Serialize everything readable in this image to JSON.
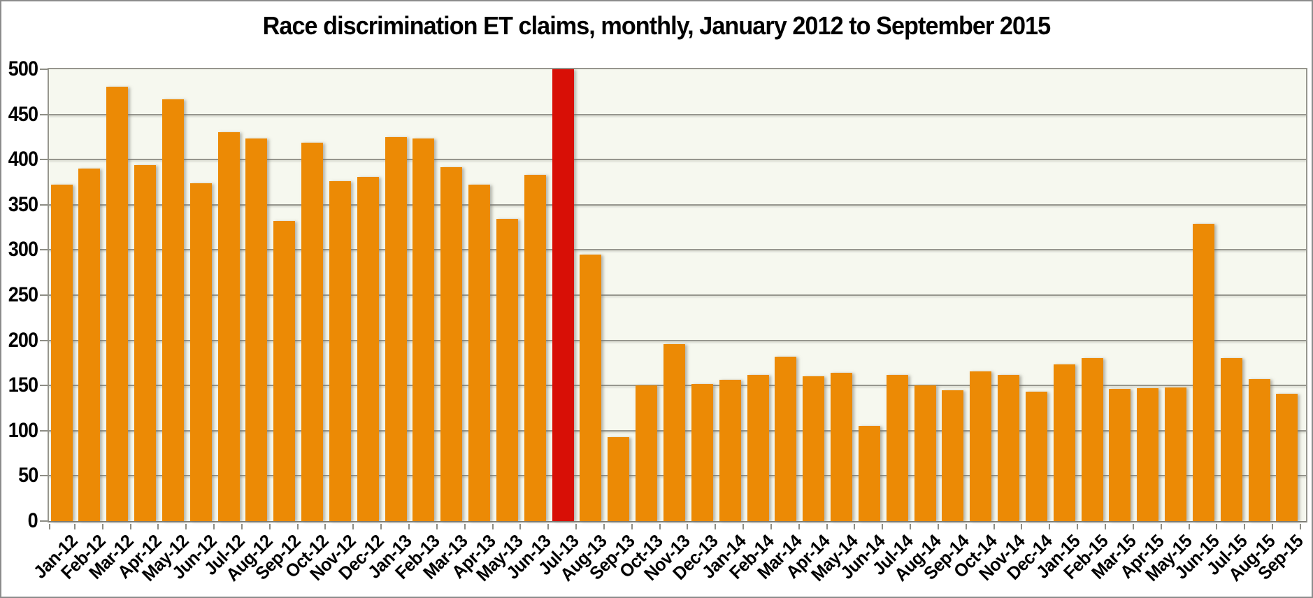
{
  "title": "Race discrimination ET claims, monthly, January 2012 to September 2015",
  "y_axis": {
    "min": 0,
    "max": 500,
    "step": 50,
    "tick_labels": [
      "500",
      "450",
      "400",
      "350",
      "300",
      "250",
      "200",
      "150",
      "100",
      "50",
      "0"
    ]
  },
  "chart_data": {
    "type": "bar",
    "title": "Race discrimination ET claims, monthly, January 2012 to September 2015",
    "xlabel": "",
    "ylabel": "",
    "ylim": [
      0,
      500
    ],
    "grid": true,
    "legend": false,
    "bar_color": "#ec8a05",
    "highlight_bar": {
      "index": 18,
      "category": "Jul-13",
      "color": "#d80f06",
      "displayed_value": 500,
      "note": "red bar clipped at y-axis maximum of 500"
    },
    "categories": [
      "Jan-12",
      "Feb-12",
      "Mar-12",
      "Apr-12",
      "May-12",
      "Jun-12",
      "Jul-12",
      "Aug-12",
      "Sep-12",
      "Oct-12",
      "Nov-12",
      "Dec-12",
      "Jan-13",
      "Feb-13",
      "Mar-13",
      "Apr-13",
      "May-13",
      "Jun-13",
      "Jul-13",
      "Aug-13",
      "Sep-13",
      "Oct-13",
      "Nov-13",
      "Dec-13",
      "Jan-14",
      "Feb-14",
      "Mar-14",
      "Apr-14",
      "May-14",
      "Jun-14",
      "Jul-14",
      "Aug-14",
      "Sep-14",
      "Oct-14",
      "Nov-14",
      "Dec-14",
      "Jan-15",
      "Feb-15",
      "Mar-15",
      "Apr-15",
      "May-15",
      "Jun-15",
      "Jul-15",
      "Aug-15",
      "Sep-15"
    ],
    "values": [
      372,
      390,
      481,
      394,
      467,
      374,
      430,
      423,
      332,
      419,
      376,
      381,
      425,
      423,
      392,
      372,
      334,
      383,
      500,
      295,
      93,
      150,
      196,
      152,
      156,
      162,
      182,
      160,
      164,
      105,
      162,
      150,
      145,
      166,
      162,
      143,
      173,
      180,
      146,
      147,
      148,
      329,
      180,
      157,
      141
    ]
  },
  "colors": {
    "page_bg": "#ffffff",
    "plot_bg": "#f6f8ef",
    "gridline": "#96968e",
    "axis": "#7f7f77",
    "outer_border": "#8c8c8c",
    "text": "#000000",
    "bar": "#ec8a05",
    "highlight": "#d80f06"
  }
}
